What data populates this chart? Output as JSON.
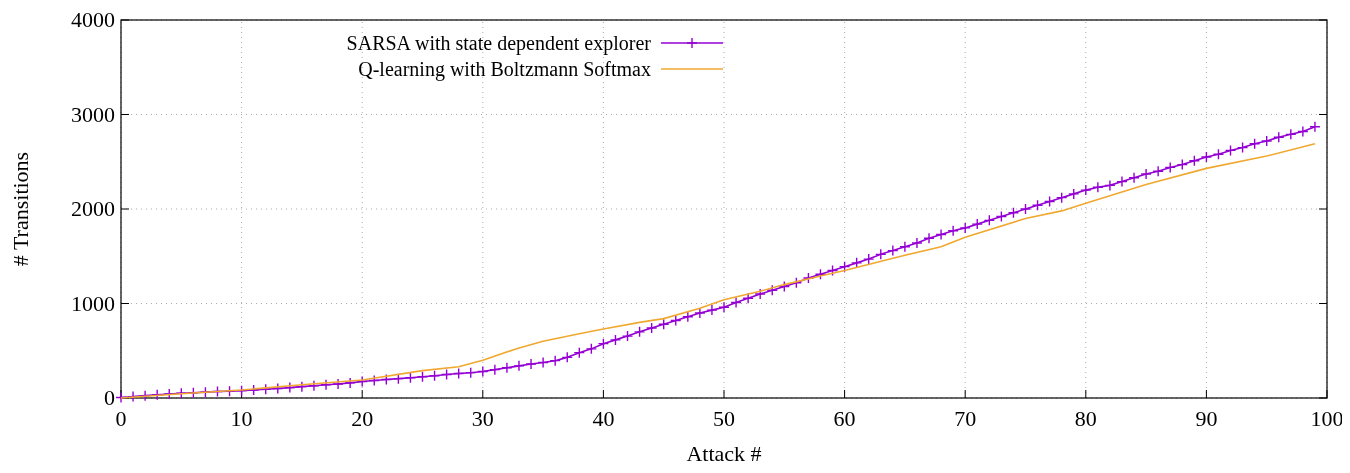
{
  "chart_data": {
    "type": "line",
    "xlabel": "Attack #",
    "ylabel": "# Transitions",
    "xlim": [
      0,
      100
    ],
    "ylim": [
      0,
      4000
    ],
    "xticks": [
      0,
      10,
      20,
      30,
      40,
      50,
      60,
      70,
      80,
      90,
      100
    ],
    "yticks": [
      0,
      1000,
      2000,
      3000,
      4000
    ],
    "grid": true,
    "legend": "top left",
    "x": [
      0,
      1,
      2,
      3,
      4,
      5,
      6,
      7,
      8,
      9,
      10,
      11,
      12,
      13,
      14,
      15,
      16,
      17,
      18,
      19,
      20,
      21,
      22,
      23,
      24,
      25,
      26,
      27,
      28,
      29,
      30,
      31,
      32,
      33,
      34,
      35,
      36,
      37,
      38,
      39,
      40,
      41,
      42,
      43,
      44,
      45,
      46,
      47,
      48,
      49,
      50,
      51,
      52,
      53,
      54,
      55,
      56,
      57,
      58,
      59,
      60,
      61,
      62,
      63,
      64,
      65,
      66,
      67,
      68,
      69,
      70,
      71,
      72,
      73,
      74,
      75,
      76,
      77,
      78,
      79,
      80,
      81,
      82,
      83,
      84,
      85,
      86,
      87,
      88,
      89,
      90,
      91,
      92,
      93,
      94,
      95,
      96,
      97,
      98,
      99
    ],
    "series": [
      {
        "name": "SARSA with state dependent explorer",
        "color": "#9400d3",
        "marker": "cross",
        "values": [
          5,
          15,
          25,
          35,
          42,
          50,
          55,
          62,
          68,
          72,
          78,
          85,
          92,
          100,
          110,
          120,
          130,
          140,
          148,
          160,
          175,
          185,
          195,
          205,
          215,
          225,
          235,
          248,
          260,
          268,
          280,
          300,
          320,
          340,
          360,
          375,
          395,
          430,
          480,
          520,
          575,
          615,
          655,
          700,
          740,
          780,
          820,
          860,
          900,
          930,
          960,
          1010,
          1055,
          1100,
          1140,
          1180,
          1220,
          1270,
          1310,
          1350,
          1390,
          1430,
          1470,
          1520,
          1560,
          1600,
          1640,
          1690,
          1730,
          1770,
          1800,
          1840,
          1880,
          1920,
          1960,
          2000,
          2040,
          2080,
          2120,
          2160,
          2200,
          2230,
          2250,
          2290,
          2330,
          2370,
          2400,
          2440,
          2470,
          2510,
          2550,
          2580,
          2620,
          2650,
          2690,
          2720,
          2760,
          2790,
          2820,
          2870
        ]
      },
      {
        "name": "Q-learning with Boltzmann Softmax",
        "color": "#f0a830",
        "marker": "none",
        "x": [
          0,
          5,
          10,
          15,
          20,
          25,
          28,
          30,
          33,
          35,
          38,
          40,
          43,
          45,
          48,
          50,
          53,
          55,
          58,
          60,
          65,
          68,
          70,
          75,
          78,
          80,
          85,
          90,
          95,
          99
        ],
        "values": [
          0,
          45,
          85,
          140,
          190,
          290,
          330,
          400,
          530,
          600,
          680,
          730,
          800,
          840,
          950,
          1040,
          1130,
          1200,
          1290,
          1350,
          1510,
          1600,
          1700,
          1900,
          1980,
          2060,
          2260,
          2430,
          2560,
          2690
        ]
      }
    ]
  }
}
